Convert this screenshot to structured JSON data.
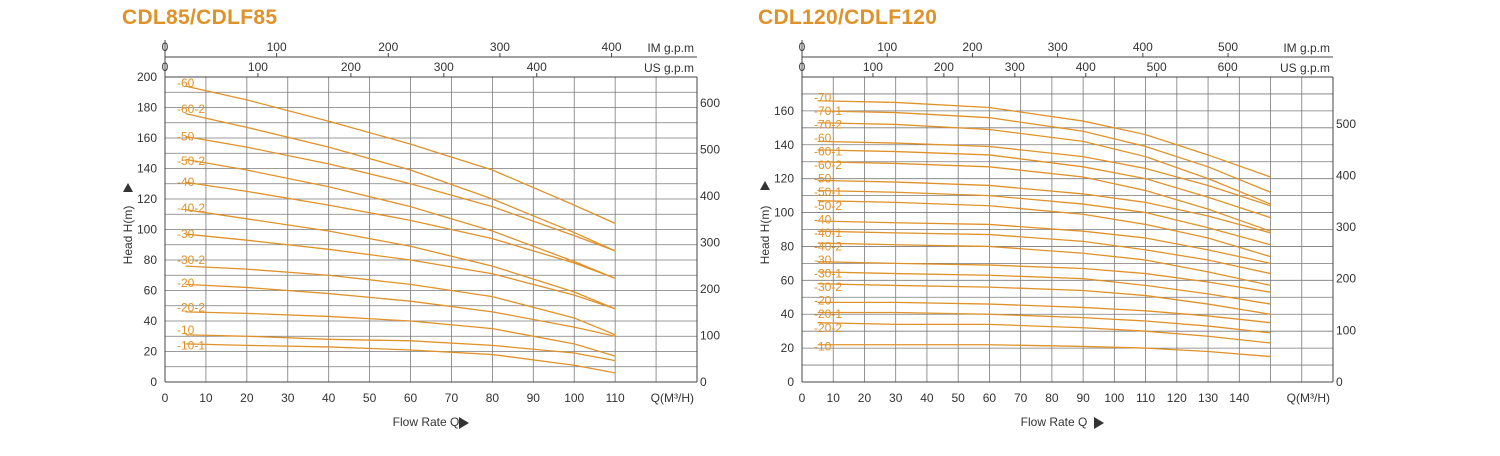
{
  "chart_data": [
    {
      "type": "line",
      "title": "CDL85/CDLF85",
      "xlabel": "Flow Rate Q",
      "ylabel": "Head H(m)",
      "x_unit_label": "Q(M³/H)",
      "x_ticks": [
        0,
        10,
        20,
        30,
        40,
        50,
        60,
        70,
        80,
        90,
        100,
        110
      ],
      "xlim": [
        0,
        130
      ],
      "y_ticks": [
        0,
        20,
        40,
        60,
        80,
        100,
        120,
        140,
        160,
        180,
        200
      ],
      "ylim": [
        0,
        200
      ],
      "right_axis": {
        "ticks": [
          0,
          100,
          200,
          300,
          400,
          500,
          600
        ],
        "scale_per_m": 3.281
      },
      "top_axes": [
        {
          "label": "IM g.p.m",
          "ticks": [
            0,
            100,
            200,
            300,
            400
          ],
          "m3h_per_unit": 0.2728
        },
        {
          "label": "US g.p.m",
          "ticks": [
            0,
            100,
            200,
            300,
            400
          ],
          "m3h_per_unit": 0.2271
        }
      ],
      "grid": true,
      "series": [
        {
          "name": "-60",
          "label_y": 196,
          "x": [
            5,
            20,
            40,
            60,
            80,
            100,
            110
          ],
          "values": [
            194,
            185,
            171,
            156,
            139,
            116,
            104
          ]
        },
        {
          "name": "-60-2",
          "label_y": 179,
          "x": [
            5,
            20,
            40,
            60,
            80,
            100,
            110
          ],
          "values": [
            176,
            167,
            154,
            139,
            120,
            98,
            86
          ]
        },
        {
          "name": "-50",
          "label_y": 161,
          "x": [
            5,
            20,
            40,
            60,
            80,
            100,
            110
          ],
          "values": [
            161,
            154,
            143,
            130,
            115,
            96,
            86
          ]
        },
        {
          "name": "-50-2",
          "label_y": 145,
          "x": [
            5,
            20,
            40,
            60,
            80,
            100,
            110
          ],
          "values": [
            146,
            139,
            128,
            115,
            99,
            79,
            68
          ]
        },
        {
          "name": "-40",
          "label_y": 131,
          "x": [
            5,
            20,
            40,
            60,
            80,
            100,
            110
          ],
          "values": [
            131,
            125,
            116,
            106,
            94,
            78,
            68
          ]
        },
        {
          "name": "-40-2",
          "label_y": 114,
          "x": [
            5,
            20,
            40,
            60,
            80,
            100,
            110
          ],
          "values": [
            113,
            107,
            99,
            89,
            76,
            59,
            48
          ]
        },
        {
          "name": "-30",
          "label_y": 97,
          "x": [
            5,
            20,
            40,
            60,
            80,
            100,
            110
          ],
          "values": [
            97,
            93,
            87,
            80,
            71,
            57,
            48
          ]
        },
        {
          "name": "-30-2",
          "label_y": 80,
          "x": [
            5,
            20,
            40,
            60,
            80,
            100,
            110
          ],
          "values": [
            76,
            74,
            70,
            64,
            56,
            42,
            31
          ]
        },
        {
          "name": "-20",
          "label_y": 65,
          "x": [
            5,
            20,
            40,
            60,
            80,
            100,
            110
          ],
          "values": [
            64,
            62,
            58,
            53,
            46,
            36,
            30
          ]
        },
        {
          "name": "-20-2",
          "label_y": 49,
          "x": [
            5,
            20,
            40,
            60,
            80,
            100,
            110
          ],
          "values": [
            46,
            45,
            43,
            40,
            35,
            25,
            17
          ]
        },
        {
          "name": "-10",
          "label_y": 34,
          "x": [
            5,
            20,
            40,
            60,
            80,
            100,
            110
          ],
          "values": [
            31,
            30,
            28,
            27,
            24,
            19,
            14
          ]
        },
        {
          "name": "-10-1",
          "label_y": 24,
          "x": [
            5,
            20,
            40,
            60,
            80,
            100,
            110
          ],
          "values": [
            25,
            24,
            23,
            21,
            18,
            11,
            6
          ]
        }
      ]
    },
    {
      "type": "line",
      "title": "CDL120/CDLF120",
      "xlabel": "Flow Rate Q",
      "ylabel": "Head H(m)",
      "x_unit_label": "Q(M³/H)",
      "x_ticks": [
        0,
        10,
        20,
        30,
        40,
        50,
        60,
        70,
        80,
        90,
        100,
        110,
        120,
        130,
        140
      ],
      "xlim": [
        0,
        170
      ],
      "y_ticks": [
        0,
        20,
        40,
        60,
        80,
        100,
        120,
        140,
        160
      ],
      "ylim": [
        0,
        180
      ],
      "right_axis": {
        "ticks": [
          0,
          100,
          200,
          300,
          400,
          500
        ],
        "scale_per_m": 3.281
      },
      "top_axes": [
        {
          "label": "IM g.p.m",
          "ticks": [
            0,
            100,
            200,
            300,
            400,
            500
          ],
          "m3h_per_unit": 0.2728
        },
        {
          "label": "US g.p.m",
          "ticks": [
            0,
            100,
            200,
            300,
            400,
            500,
            600
          ],
          "m3h_per_unit": 0.2271
        }
      ],
      "grid": true,
      "series": [
        {
          "name": "-70",
          "label_y": 168,
          "x": [
            5,
            30,
            60,
            90,
            110,
            130,
            150
          ],
          "values": [
            166,
            165,
            162,
            154,
            146,
            134,
            121
          ]
        },
        {
          "name": "-70-1",
          "label_y": 160,
          "x": [
            5,
            30,
            60,
            90,
            110,
            130,
            150
          ],
          "values": [
            160,
            159,
            156,
            148,
            139,
            127,
            112
          ]
        },
        {
          "name": "-70-2",
          "label_y": 152,
          "x": [
            5,
            30,
            60,
            90,
            110,
            130,
            150
          ],
          "values": [
            153,
            152,
            149,
            142,
            133,
            120,
            105
          ]
        },
        {
          "name": "-60",
          "label_y": 144,
          "x": [
            5,
            30,
            60,
            90,
            110,
            130,
            150
          ],
          "values": [
            142,
            141,
            139,
            133,
            126,
            116,
            104
          ]
        },
        {
          "name": "-60-1",
          "label_y": 136,
          "x": [
            5,
            30,
            60,
            90,
            110,
            130,
            150
          ],
          "values": [
            137,
            136,
            134,
            127,
            120,
            109,
            97
          ]
        },
        {
          "name": "-60-2",
          "label_y": 128,
          "x": [
            5,
            30,
            60,
            90,
            110,
            130,
            150
          ],
          "values": [
            130,
            129,
            127,
            121,
            113,
            102,
            89
          ]
        },
        {
          "name": "-50",
          "label_y": 120,
          "x": [
            5,
            30,
            60,
            90,
            110,
            130,
            150
          ],
          "values": [
            119,
            118,
            116,
            111,
            106,
            98,
            88
          ]
        },
        {
          "name": "-50-1",
          "label_y": 112,
          "x": [
            5,
            30,
            60,
            90,
            110,
            130,
            150
          ],
          "values": [
            113,
            112,
            110,
            105,
            100,
            91,
            81
          ]
        },
        {
          "name": "-50-2",
          "label_y": 104,
          "x": [
            5,
            30,
            60,
            90,
            110,
            130,
            150
          ],
          "values": [
            107,
            106,
            104,
            99,
            93,
            85,
            74
          ]
        },
        {
          "name": "-40",
          "label_y": 96,
          "x": [
            5,
            30,
            60,
            90,
            110,
            130,
            150
          ],
          "values": [
            95,
            94,
            93,
            89,
            85,
            78,
            70
          ]
        },
        {
          "name": "-40-1",
          "label_y": 88,
          "x": [
            5,
            30,
            60,
            90,
            110,
            130,
            150
          ],
          "values": [
            89,
            88,
            87,
            83,
            78,
            72,
            64
          ]
        },
        {
          "name": "-40-2",
          "label_y": 80,
          "x": [
            5,
            30,
            60,
            90,
            110,
            130,
            150
          ],
          "values": [
            82,
            81,
            80,
            76,
            72,
            65,
            57
          ]
        },
        {
          "name": "-30",
          "label_y": 72,
          "x": [
            5,
            30,
            60,
            90,
            110,
            130,
            150
          ],
          "values": [
            71,
            70,
            69,
            67,
            64,
            59,
            53
          ]
        },
        {
          "name": "-30-1",
          "label_y": 64,
          "x": [
            5,
            30,
            60,
            90,
            110,
            130,
            150
          ],
          "values": [
            65,
            64,
            63,
            61,
            57,
            52,
            46
          ]
        },
        {
          "name": "-30-2",
          "label_y": 56,
          "x": [
            5,
            30,
            60,
            90,
            110,
            130,
            150
          ],
          "values": [
            58,
            57,
            56,
            54,
            51,
            46,
            40
          ]
        },
        {
          "name": "-20",
          "label_y": 48,
          "x": [
            5,
            30,
            60,
            90,
            110,
            130,
            150
          ],
          "values": [
            47,
            47,
            46,
            44,
            42,
            39,
            35
          ]
        },
        {
          "name": "-20-1",
          "label_y": 40,
          "x": [
            5,
            30,
            60,
            90,
            110,
            130,
            150
          ],
          "values": [
            41,
            41,
            40,
            38,
            36,
            33,
            29
          ]
        },
        {
          "name": "-20-2",
          "label_y": 32,
          "x": [
            5,
            30,
            60,
            90,
            110,
            130,
            150
          ],
          "values": [
            35,
            34,
            34,
            32,
            30,
            27,
            23
          ]
        },
        {
          "name": "-10",
          "label_y": 21,
          "x": [
            5,
            30,
            60,
            90,
            110,
            130,
            150
          ],
          "values": [
            22,
            22,
            22,
            21,
            20,
            18,
            15
          ]
        }
      ]
    }
  ],
  "colors": {
    "title": "#e0922a",
    "curve": "#e0922a",
    "grid": "#7a7a7a",
    "text": "#333333"
  },
  "icons": {
    "y_arrow": "triangle-up-icon",
    "x_arrow": "triangle-right-icon"
  }
}
